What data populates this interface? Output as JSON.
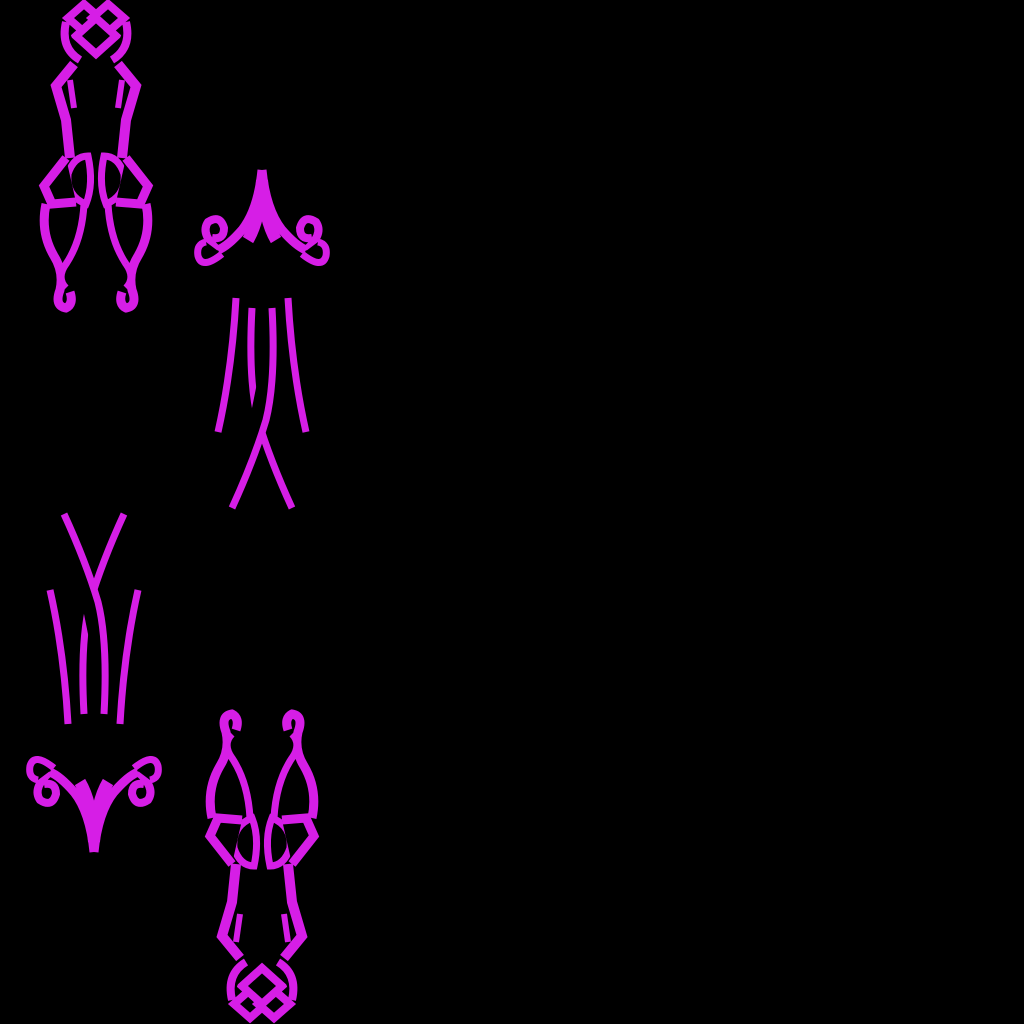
{
  "background_color": "#000000",
  "ornament_color": "#d61ee6",
  "ornaments": [
    {
      "name": "celtic-knot-ornament-top",
      "icon": "celtic-knot-icon"
    },
    {
      "name": "spire-swirl-ornament-top",
      "icon": "spire-swirl-icon"
    },
    {
      "name": "spire-swirl-ornament-bottom",
      "icon": "spire-swirl-icon"
    },
    {
      "name": "celtic-knot-ornament-bottom",
      "icon": "celtic-knot-icon"
    }
  ]
}
